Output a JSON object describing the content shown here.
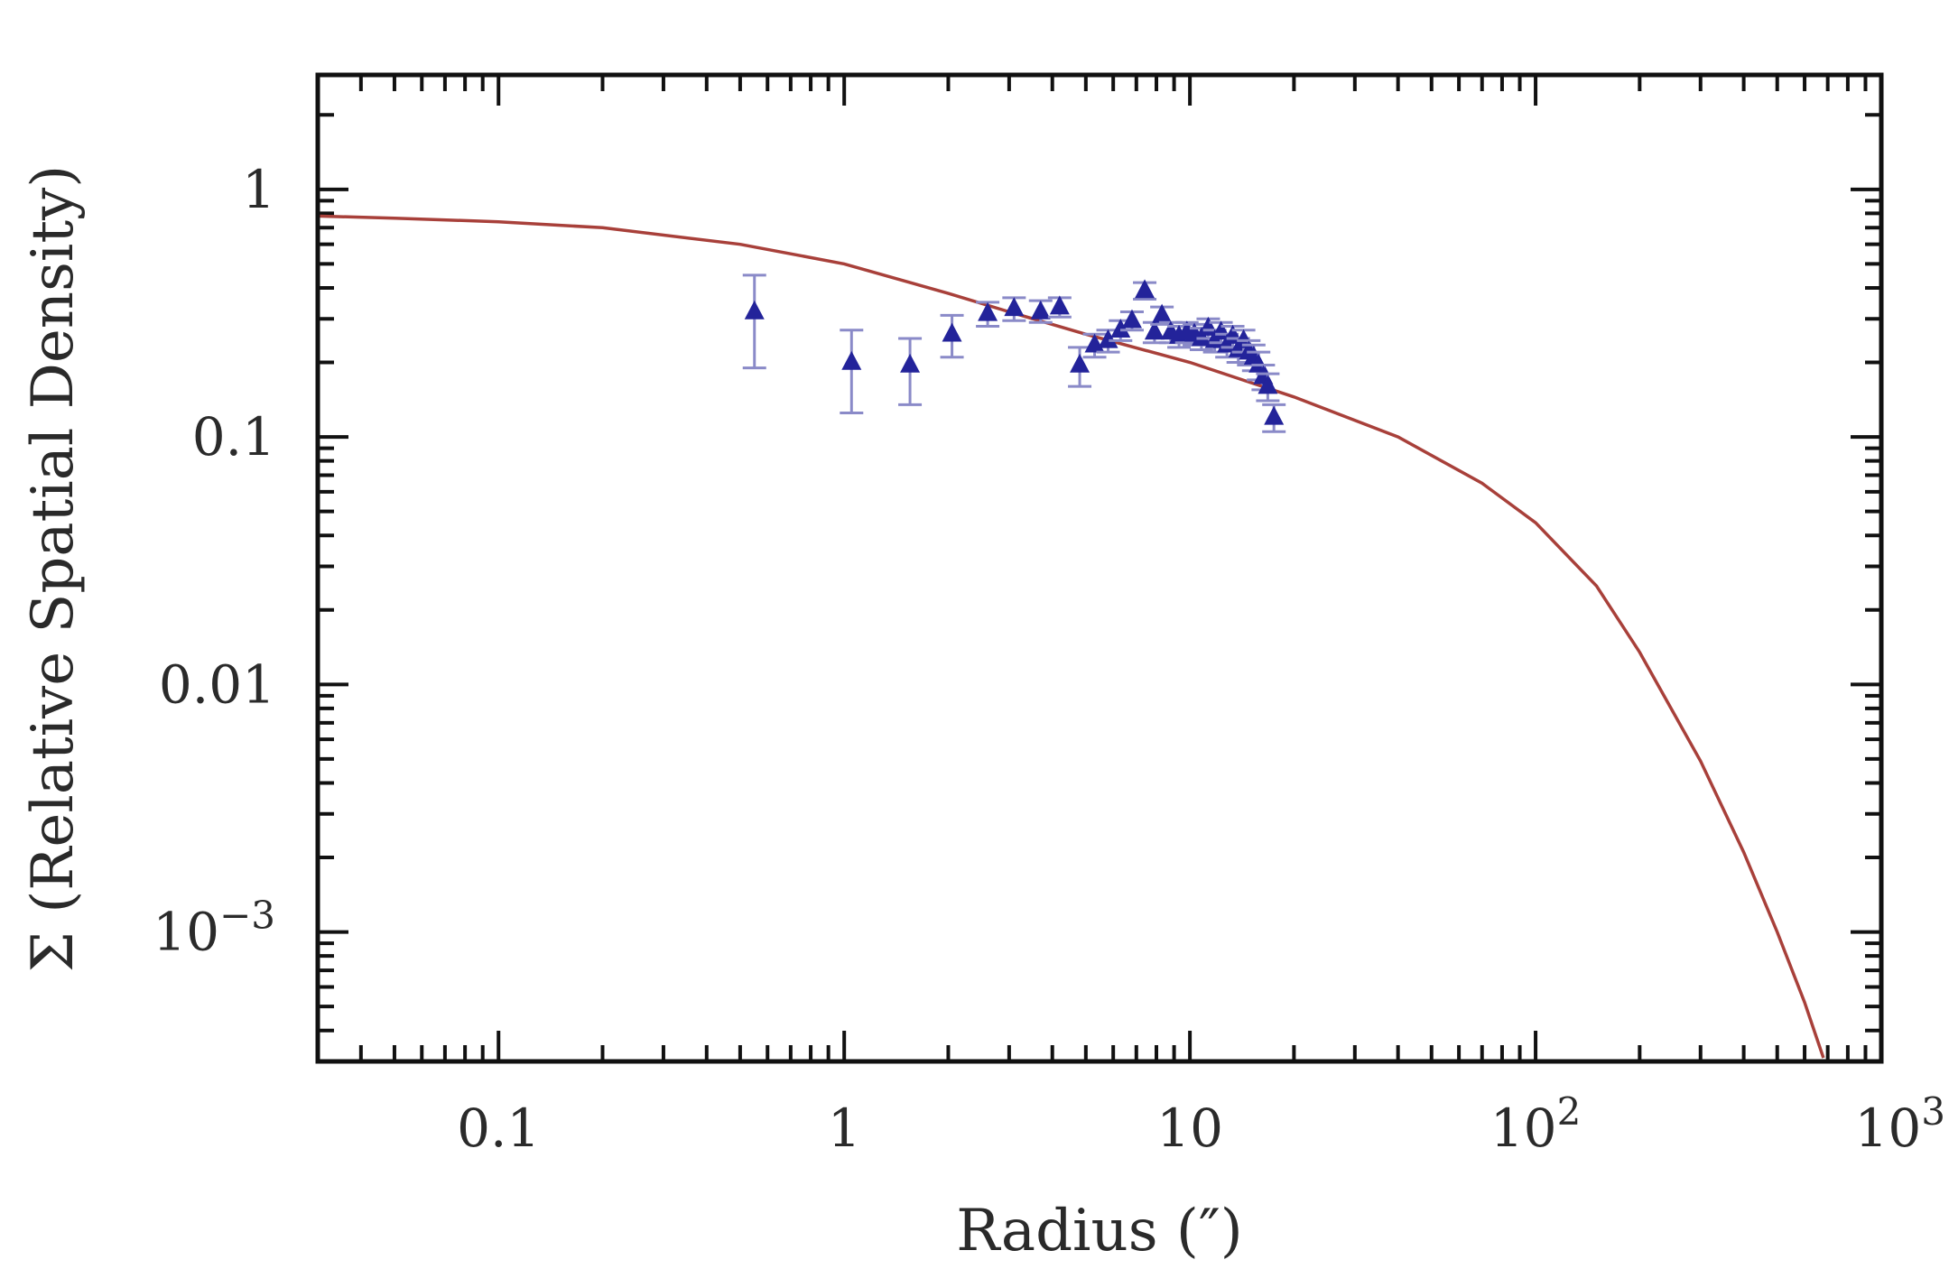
{
  "chart_data": {
    "type": "scatter",
    "title": "",
    "xlabel": "Radius (″)",
    "ylabel": "Σ (Relative Spatial Density)",
    "xscale": "log",
    "yscale": "log",
    "xlim": [
      0.03,
      1000
    ],
    "ylim": [
      0.0003,
      2.9
    ],
    "grid": false,
    "legend": "none",
    "x_ticks": [
      {
        "value": 0.1,
        "base": "0.1",
        "exp": ""
      },
      {
        "value": 1,
        "base": "1",
        "exp": ""
      },
      {
        "value": 10,
        "base": "10",
        "exp": ""
      },
      {
        "value": 100,
        "base": "10",
        "exp": "2"
      },
      {
        "value": 1000,
        "base": "10",
        "exp": "3"
      }
    ],
    "y_ticks": [
      {
        "value": 1,
        "base": "1",
        "exp": ""
      },
      {
        "value": 0.1,
        "base": "0.1",
        "exp": ""
      },
      {
        "value": 0.01,
        "base": "0.01",
        "exp": ""
      },
      {
        "value": 0.001,
        "base": "10",
        "exp": "−3"
      }
    ],
    "series": [
      {
        "kind": "points",
        "marker": "triangle",
        "color": "#23239a",
        "error_color": "#8a8ac8",
        "points": [
          {
            "x": 0.55,
            "y": 0.32,
            "lo": 0.19,
            "hi": 0.45
          },
          {
            "x": 1.05,
            "y": 0.2,
            "lo": 0.125,
            "hi": 0.27
          },
          {
            "x": 1.55,
            "y": 0.195,
            "lo": 0.135,
            "hi": 0.25
          },
          {
            "x": 2.05,
            "y": 0.26,
            "lo": 0.21,
            "hi": 0.31
          },
          {
            "x": 2.6,
            "y": 0.315,
            "lo": 0.28,
            "hi": 0.35
          },
          {
            "x": 3.1,
            "y": 0.33,
            "lo": 0.295,
            "hi": 0.365
          },
          {
            "x": 3.7,
            "y": 0.32,
            "lo": 0.29,
            "hi": 0.355
          },
          {
            "x": 4.2,
            "y": 0.335,
            "lo": 0.305,
            "hi": 0.365
          },
          {
            "x": 4.8,
            "y": 0.195,
            "lo": 0.16,
            "hi": 0.23
          },
          {
            "x": 5.3,
            "y": 0.235,
            "lo": 0.21,
            "hi": 0.26
          },
          {
            "x": 5.8,
            "y": 0.245,
            "lo": 0.22,
            "hi": 0.27
          },
          {
            "x": 6.3,
            "y": 0.27,
            "lo": 0.245,
            "hi": 0.295
          },
          {
            "x": 6.8,
            "y": 0.295,
            "lo": 0.27,
            "hi": 0.32
          },
          {
            "x": 7.4,
            "y": 0.39,
            "lo": 0.36,
            "hi": 0.42
          },
          {
            "x": 7.9,
            "y": 0.265,
            "lo": 0.24,
            "hi": 0.29
          },
          {
            "x": 8.3,
            "y": 0.31,
            "lo": 0.285,
            "hi": 0.335
          },
          {
            "x": 8.8,
            "y": 0.265,
            "lo": 0.24,
            "hi": 0.29
          },
          {
            "x": 9.3,
            "y": 0.255,
            "lo": 0.23,
            "hi": 0.28
          },
          {
            "x": 9.8,
            "y": 0.265,
            "lo": 0.24,
            "hi": 0.29
          },
          {
            "x": 10.3,
            "y": 0.26,
            "lo": 0.235,
            "hi": 0.285
          },
          {
            "x": 10.8,
            "y": 0.25,
            "lo": 0.225,
            "hi": 0.275
          },
          {
            "x": 11.3,
            "y": 0.275,
            "lo": 0.25,
            "hi": 0.3
          },
          {
            "x": 11.8,
            "y": 0.245,
            "lo": 0.22,
            "hi": 0.27
          },
          {
            "x": 12.3,
            "y": 0.265,
            "lo": 0.24,
            "hi": 0.29
          },
          {
            "x": 12.8,
            "y": 0.235,
            "lo": 0.21,
            "hi": 0.26
          },
          {
            "x": 13.3,
            "y": 0.255,
            "lo": 0.23,
            "hi": 0.28
          },
          {
            "x": 13.8,
            "y": 0.225,
            "lo": 0.2,
            "hi": 0.25
          },
          {
            "x": 14.3,
            "y": 0.245,
            "lo": 0.22,
            "hi": 0.27
          },
          {
            "x": 14.8,
            "y": 0.22,
            "lo": 0.195,
            "hi": 0.245
          },
          {
            "x": 15.3,
            "y": 0.21,
            "lo": 0.185,
            "hi": 0.235
          },
          {
            "x": 15.8,
            "y": 0.195,
            "lo": 0.17,
            "hi": 0.22
          },
          {
            "x": 16.3,
            "y": 0.175,
            "lo": 0.155,
            "hi": 0.195
          },
          {
            "x": 16.8,
            "y": 0.16,
            "lo": 0.14,
            "hi": 0.18
          },
          {
            "x": 17.5,
            "y": 0.12,
            "lo": 0.105,
            "hi": 0.135
          }
        ]
      },
      {
        "kind": "curve",
        "color": "#a8403a",
        "points": [
          {
            "x": 0.03,
            "y": 0.78
          },
          {
            "x": 0.05,
            "y": 0.765
          },
          {
            "x": 0.1,
            "y": 0.74
          },
          {
            "x": 0.2,
            "y": 0.7
          },
          {
            "x": 0.5,
            "y": 0.6
          },
          {
            "x": 1,
            "y": 0.5
          },
          {
            "x": 2,
            "y": 0.38
          },
          {
            "x": 3,
            "y": 0.32
          },
          {
            "x": 5,
            "y": 0.26
          },
          {
            "x": 10,
            "y": 0.2
          },
          {
            "x": 20,
            "y": 0.145
          },
          {
            "x": 40,
            "y": 0.1
          },
          {
            "x": 70,
            "y": 0.065
          },
          {
            "x": 100,
            "y": 0.045
          },
          {
            "x": 150,
            "y": 0.025
          },
          {
            "x": 200,
            "y": 0.0135
          },
          {
            "x": 300,
            "y": 0.0049
          },
          {
            "x": 400,
            "y": 0.0021
          },
          {
            "x": 500,
            "y": 0.001
          },
          {
            "x": 600,
            "y": 0.00052
          },
          {
            "x": 680,
            "y": 0.00031
          }
        ]
      }
    ]
  }
}
